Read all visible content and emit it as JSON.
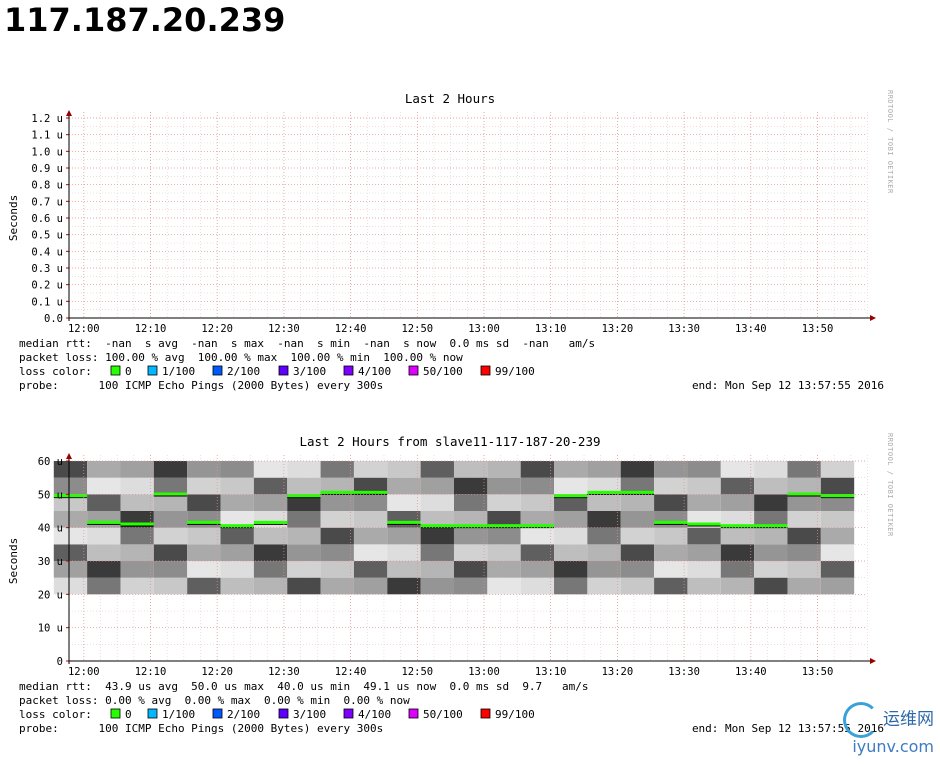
{
  "page": {
    "host": "117.187.20.239"
  },
  "x_tick_labels": [
    "12:00",
    "12:10",
    "12:20",
    "12:30",
    "12:40",
    "12:50",
    "13:00",
    "13:10",
    "13:20",
    "13:30",
    "13:40",
    "13:50"
  ],
  "graphs": [
    {
      "title": "Last 2 Hours",
      "ylabel": "Seconds",
      "side_text": "RRDTOOL / TOBI OETIKER",
      "y_tick_labels": [
        "1.2 u",
        "1.1 u",
        "1.0 u",
        "0.9 u",
        "0.8 u",
        "0.7 u",
        "0.6 u",
        "0.5 u",
        "0.4 u",
        "0.3 u",
        "0.2 u",
        "0.1 u",
        "0.0"
      ],
      "median_rtt": "median rtt:  -nan  s avg  -nan  s max  -nan  s min  -nan  s now  0.0 ms sd  -nan   am/s",
      "packet_loss": "packet loss: 100.00 % avg  100.00 % max  100.00 % min  100.00 % now",
      "loss_label": "loss color:",
      "probe": "probe:      100 ICMP Echo Pings (2000 Bytes) every 300s",
      "end": "end: Mon Sep 12 13:57:55 2016"
    },
    {
      "title": "Last 2 Hours from slave11-117-187-20-239",
      "ylabel": "Seconds",
      "side_text": "RRDTOOL / TOBI OETIKER",
      "y_tick_labels": [
        "60 u",
        "50 u",
        "40 u",
        "30 u",
        "20 u",
        "10 u",
        "0"
      ],
      "median_rtt": "median rtt:  43.9 us avg  50.0 us max  40.0 us min  49.1 us now  0.0 ms sd  9.7   am/s",
      "packet_loss": "packet loss: 0.00 % avg  0.00 % max  0.00 % min  0.00 % now",
      "loss_label": "loss color:",
      "probe": "probe:      100 ICMP Echo Pings (2000 Bytes) every 300s",
      "end": "end: Mon Sep 12 13:57:55 2016"
    }
  ],
  "loss_legend": [
    {
      "label": "0",
      "color": "#26ff00"
    },
    {
      "label": "1/100",
      "color": "#00b8ff"
    },
    {
      "label": "2/100",
      "color": "#0059ff"
    },
    {
      "label": "3/100",
      "color": "#5e00ff"
    },
    {
      "label": "4/100",
      "color": "#7e00ff"
    },
    {
      "label": "50/100",
      "color": "#dd00ff"
    },
    {
      "label": "99/100",
      "color": "#ff0000"
    }
  ],
  "chart_data": [
    {
      "type": "line",
      "title": "Last 2 Hours",
      "xlabel": "",
      "ylabel": "Seconds",
      "x_ticks": [
        "12:00",
        "12:10",
        "12:20",
        "12:30",
        "12:40",
        "12:50",
        "13:00",
        "13:10",
        "13:20",
        "13:30",
        "13:40",
        "13:50"
      ],
      "y_unit": "u",
      "ylim": [
        0,
        1.2
      ],
      "grid": true,
      "series": []
    },
    {
      "type": "line",
      "title": "Last 2 Hours from slave11-117-187-20-239",
      "xlabel": "",
      "ylabel": "Seconds",
      "x_ticks": [
        "12:00",
        "12:10",
        "12:20",
        "12:30",
        "12:40",
        "12:50",
        "13:00",
        "13:10",
        "13:20",
        "13:30",
        "13:40",
        "13:50"
      ],
      "y_unit": "u",
      "ylim": [
        0,
        60
      ],
      "grid": true,
      "x": [
        "11:58",
        "12:03",
        "12:08",
        "12:13",
        "12:18",
        "12:23",
        "12:28",
        "12:33",
        "12:38",
        "12:43",
        "12:48",
        "12:53",
        "12:58",
        "13:03",
        "13:08",
        "13:13",
        "13:18",
        "13:23",
        "13:28",
        "13:33",
        "13:38",
        "13:43",
        "13:48",
        "13:53"
      ],
      "series": [
        {
          "values": [
            49.0,
            41.0,
            40.5,
            49.5,
            41.0,
            40.0,
            41.0,
            49.0,
            50.0,
            50.0,
            41.0,
            40.0,
            40.0,
            40.0,
            40.0,
            49.0,
            50.0,
            50.0,
            41.0,
            40.5,
            40.0,
            40.0,
            49.5,
            49.0
          ]
        }
      ],
      "smoke_min": [
        20,
        20,
        20,
        20,
        20,
        20,
        20,
        20,
        20,
        20,
        20,
        20,
        20,
        20,
        20,
        20,
        20,
        20,
        20,
        20,
        20,
        20,
        20,
        20
      ],
      "smoke_max": [
        60,
        60,
        60,
        60,
        60,
        60,
        60,
        60,
        60,
        60,
        60,
        60,
        60,
        60,
        60,
        60,
        60,
        60,
        60,
        60,
        60,
        60,
        60,
        60
      ]
    }
  ]
}
